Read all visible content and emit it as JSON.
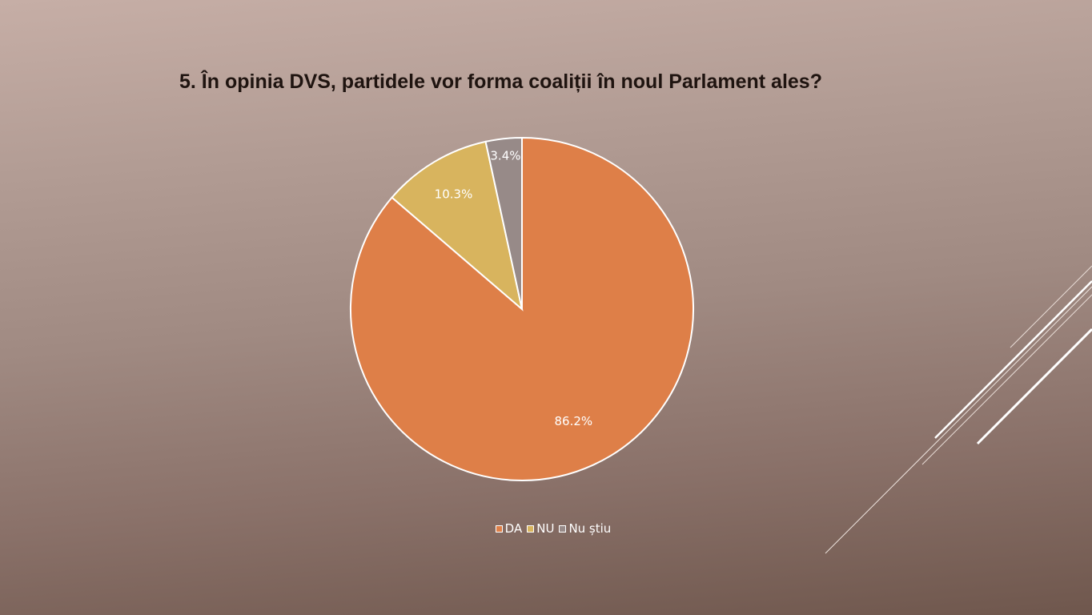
{
  "chart_data": {
    "type": "pie",
    "title": "5. În opinia DVS, partidele vor forma coaliții în noul Parlament ales?",
    "categories": [
      "DA",
      "NU",
      "Nu știu"
    ],
    "values": [
      86.2,
      10.3,
      3.4
    ],
    "labels": [
      "86.2%",
      "10.3%",
      "3.4%"
    ],
    "colors": [
      "#de7f48",
      "#d8b45e",
      "#978a88"
    ],
    "legend_position": "bottom"
  }
}
